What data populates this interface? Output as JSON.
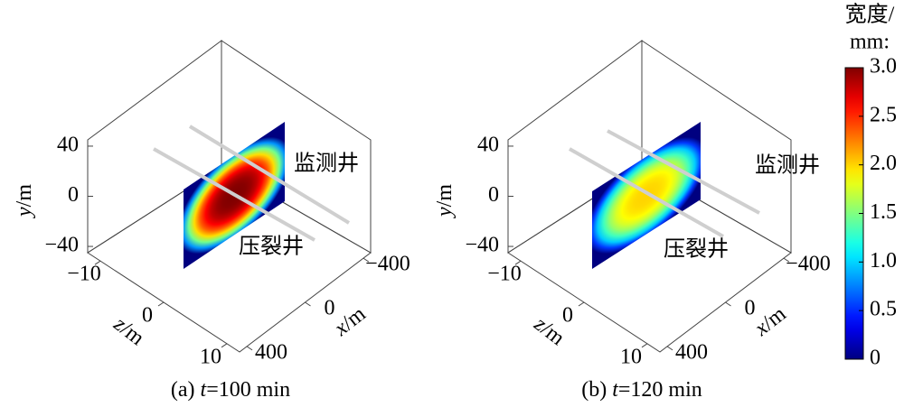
{
  "chart_data": [
    {
      "type": "fracture3d",
      "title": {
        "label": "(a)",
        "variable": "t",
        "text": "=100 min"
      },
      "ylabel": {
        "variable": "y",
        "unit": "/m"
      },
      "zlabel": {
        "variable": "z",
        "unit": "/m"
      },
      "xlabel": {
        "variable": "x",
        "unit": "/m"
      },
      "ylim": [
        -45,
        45
      ],
      "yticks": [
        40,
        0,
        {
          "value": -40,
          "label": "−40"
        }
      ],
      "zlim": [
        -12,
        12
      ],
      "zticks": [
        {
          "value": -10,
          "label": "−10"
        },
        0,
        10
      ],
      "xlim": [
        450,
        -450
      ],
      "xticks": [
        400,
        0,
        {
          "value": -400,
          "label": "−400"
        }
      ],
      "annotations": [
        "监测井",
        "压裂井"
      ],
      "peak_width": 3.0
    },
    {
      "type": "fracture3d",
      "title": {
        "label": "(b)",
        "variable": "t",
        "text": "=120 min"
      },
      "ylabel": {
        "variable": "y",
        "unit": "/m"
      },
      "zlabel": {
        "variable": "z",
        "unit": "/m"
      },
      "xlabel": {
        "variable": "x",
        "unit": "/m"
      },
      "ylim": [
        -45,
        45
      ],
      "yticks": [
        40,
        0,
        {
          "value": -40,
          "label": "−40"
        }
      ],
      "zlim": [
        -12,
        12
      ],
      "zticks": [
        {
          "value": -10,
          "label": "−10"
        },
        0,
        10
      ],
      "xlim": [
        450,
        -450
      ],
      "xticks": [
        400,
        0,
        {
          "value": -400,
          "label": "−400"
        }
      ],
      "annotations": [
        "监测井",
        "压裂井"
      ],
      "peak_width": 2.0
    },
    {
      "type": "colorbar",
      "title": [
        "宽度/",
        "mm:"
      ],
      "clim": [
        0,
        3
      ],
      "cticks": [
        0,
        0.5,
        {
          "value": 1,
          "label": "1.0"
        },
        1.5,
        {
          "value": 2,
          "label": "2.0"
        },
        2.5,
        {
          "value": 3,
          "label": "3.0"
        }
      ]
    }
  ]
}
